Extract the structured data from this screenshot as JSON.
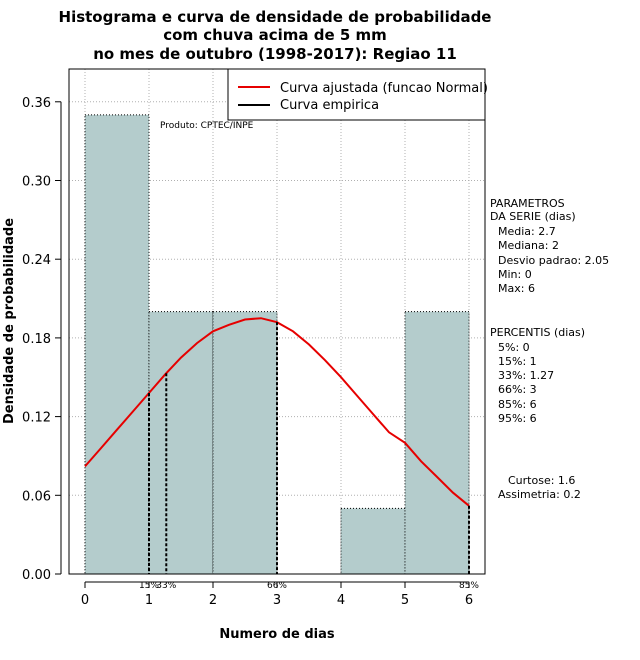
{
  "chart_data": {
    "type": "bar",
    "title": [
      "Histograma e curva de densidade de probabilidade",
      "com chuva acima de 5 mm",
      "no mes de outubro (1998-2017): Regiao 11"
    ],
    "xlabel": "Numero de dias",
    "ylabel": "Densidade de probabilidade",
    "xlim": [
      -0.25,
      6.25
    ],
    "ylim": [
      0,
      0.385
    ],
    "x_ticks": [
      0,
      1,
      2,
      3,
      4,
      5,
      6
    ],
    "y_ticks": [
      0.0,
      0.06,
      0.12,
      0.18,
      0.24,
      0.3,
      0.36
    ],
    "y_tick_labels": [
      "0.00",
      "0.06",
      "0.12",
      "0.18",
      "0.24",
      "0.30",
      "0.36"
    ],
    "grid": true,
    "histogram": {
      "bins": [
        [
          0,
          1
        ],
        [
          1,
          2
        ],
        [
          2,
          3
        ],
        [
          3,
          4
        ],
        [
          4,
          5
        ],
        [
          5,
          6
        ]
      ],
      "density": [
        0.35,
        0.2,
        0.2,
        0.0,
        0.05,
        0.2
      ],
      "fill": "#b4cccc"
    },
    "fitted_curve": {
      "name": "Curva ajustada (funcao Normal)",
      "color": "#e60000",
      "x": [
        0,
        0.25,
        0.5,
        0.75,
        1,
        1.25,
        1.5,
        1.75,
        2,
        2.25,
        2.5,
        2.75,
        3,
        3.25,
        3.5,
        3.75,
        4,
        4.25,
        4.5,
        4.75,
        5,
        5.25,
        5.5,
        5.75,
        6
      ],
      "y": [
        0.082,
        0.096,
        0.11,
        0.124,
        0.138,
        0.152,
        0.165,
        0.176,
        0.185,
        0.19,
        0.194,
        0.195,
        0.192,
        0.185,
        0.175,
        0.163,
        0.15,
        0.136,
        0.122,
        0.108,
        0.1,
        0.086,
        0.074,
        0.062,
        0.052
      ]
    },
    "empirical_curve": {
      "name": "Curva empirica",
      "color": "#000000"
    },
    "legend_position": "top-right",
    "percentile_markers": [
      {
        "x": 1,
        "label": "15%"
      },
      {
        "x": 1.27,
        "label": "33%"
      },
      {
        "x": 3,
        "label": "66%"
      },
      {
        "x": 6,
        "label": "85%"
      }
    ],
    "annotation": "Produto: CPTEC/INPE",
    "side_panel": {
      "params_title": [
        "PARAMETROS",
        "DA SERIE (dias)"
      ],
      "params": [
        "Media: 2.7",
        "Mediana: 2",
        "Desvio padrao: 2.05",
        "Min: 0",
        "Max: 6"
      ],
      "percentis_title": "PERCENTIS (dias)",
      "percentis": [
        "5%: 0",
        "15%: 1",
        "33%: 1.27",
        "66%: 3",
        "85%: 6",
        "95%: 6"
      ],
      "curtose": "Curtose: 1.6",
      "assimetria": "Assimetria: 0.2"
    }
  }
}
